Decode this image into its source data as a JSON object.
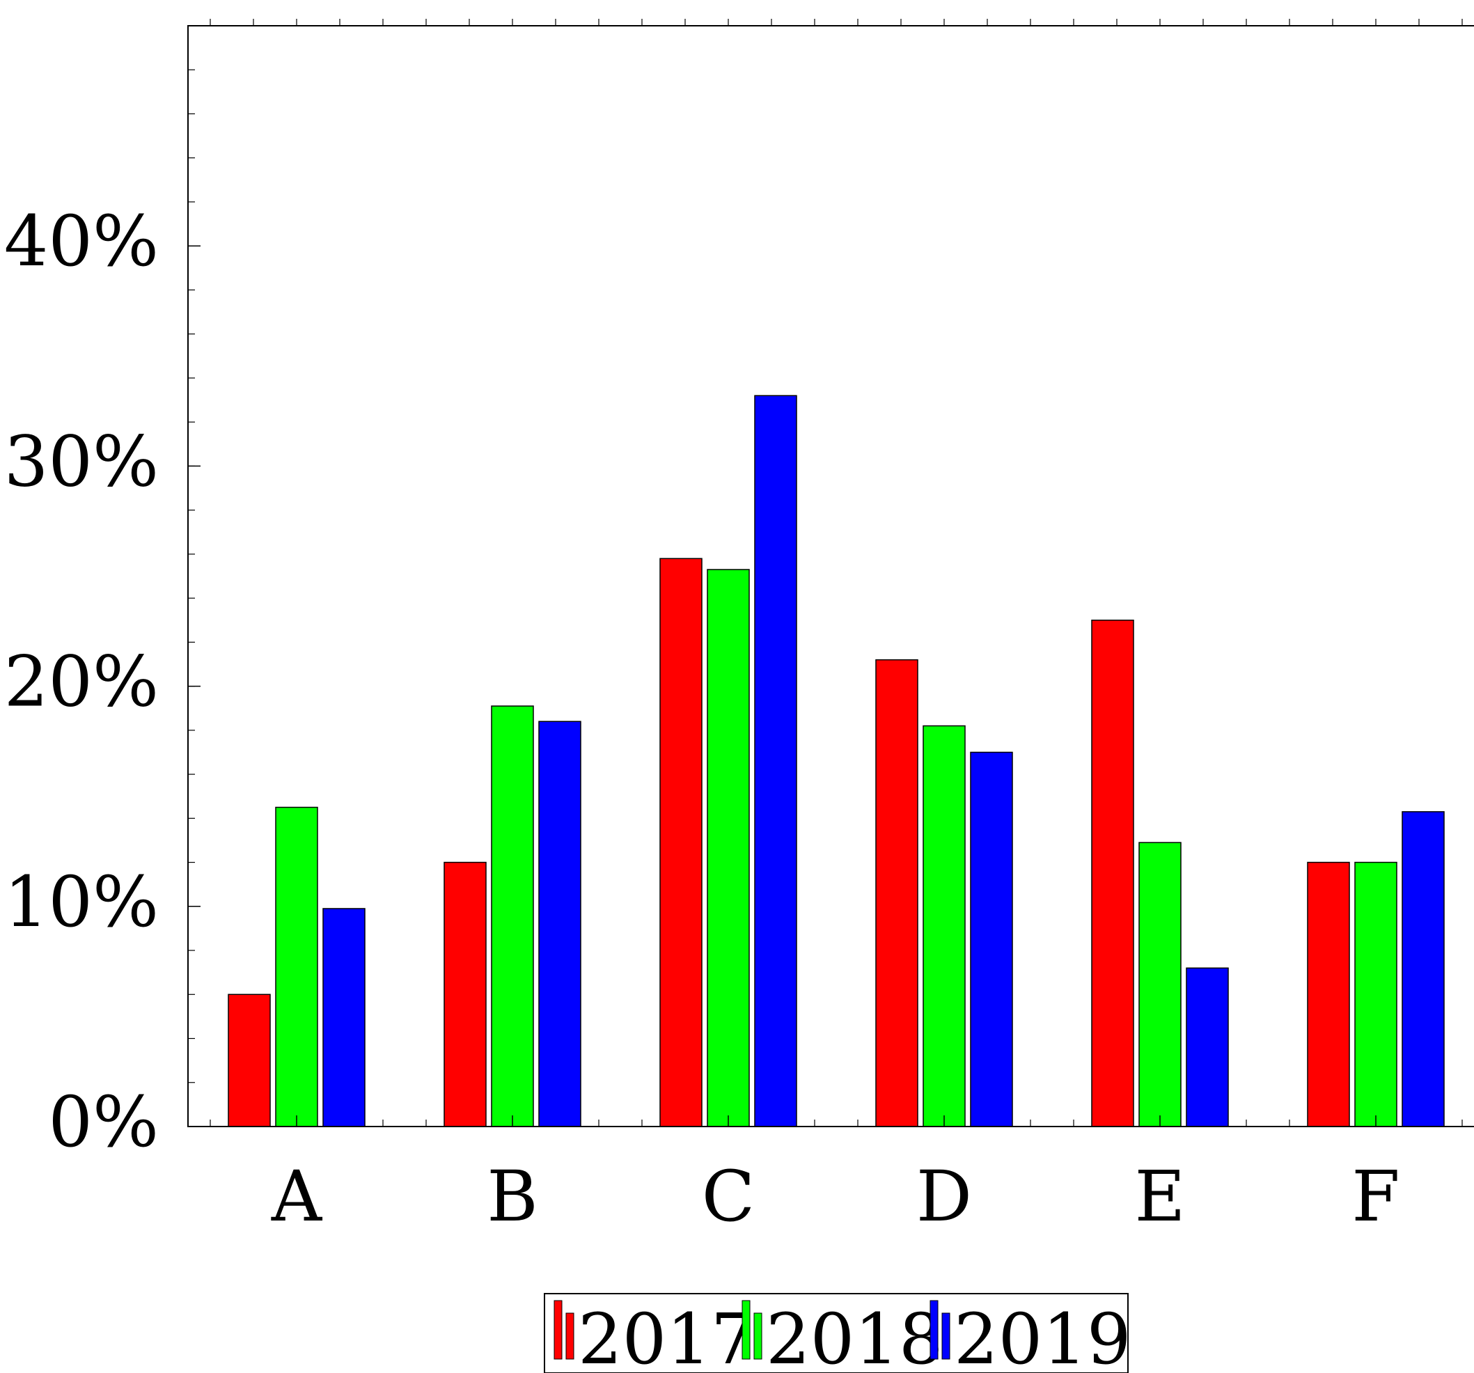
{
  "chart_data": {
    "type": "bar",
    "categories": [
      "A",
      "B",
      "C",
      "D",
      "E",
      "F"
    ],
    "series": [
      {
        "name": "2017",
        "color": "#ff0000",
        "values": [
          6,
          12,
          25.8,
          21.2,
          23,
          12
        ]
      },
      {
        "name": "2018",
        "color": "#00ff00",
        "values": [
          14.5,
          19.1,
          25.3,
          18.2,
          12.9,
          12
        ]
      },
      {
        "name": "2019",
        "color": "#0000ff",
        "values": [
          9.9,
          18.4,
          33.2,
          17,
          7.2,
          14.3
        ]
      }
    ],
    "ylim": [
      0,
      50
    ],
    "y_ticks": [
      0,
      10,
      20,
      30,
      40
    ],
    "y_tick_labels": [
      "0%",
      "10%",
      "20%",
      "30%",
      "40%"
    ],
    "legend": {
      "placement": "bottom-center",
      "entries": [
        "2017",
        "2018",
        "2019"
      ]
    },
    "grid": false
  }
}
